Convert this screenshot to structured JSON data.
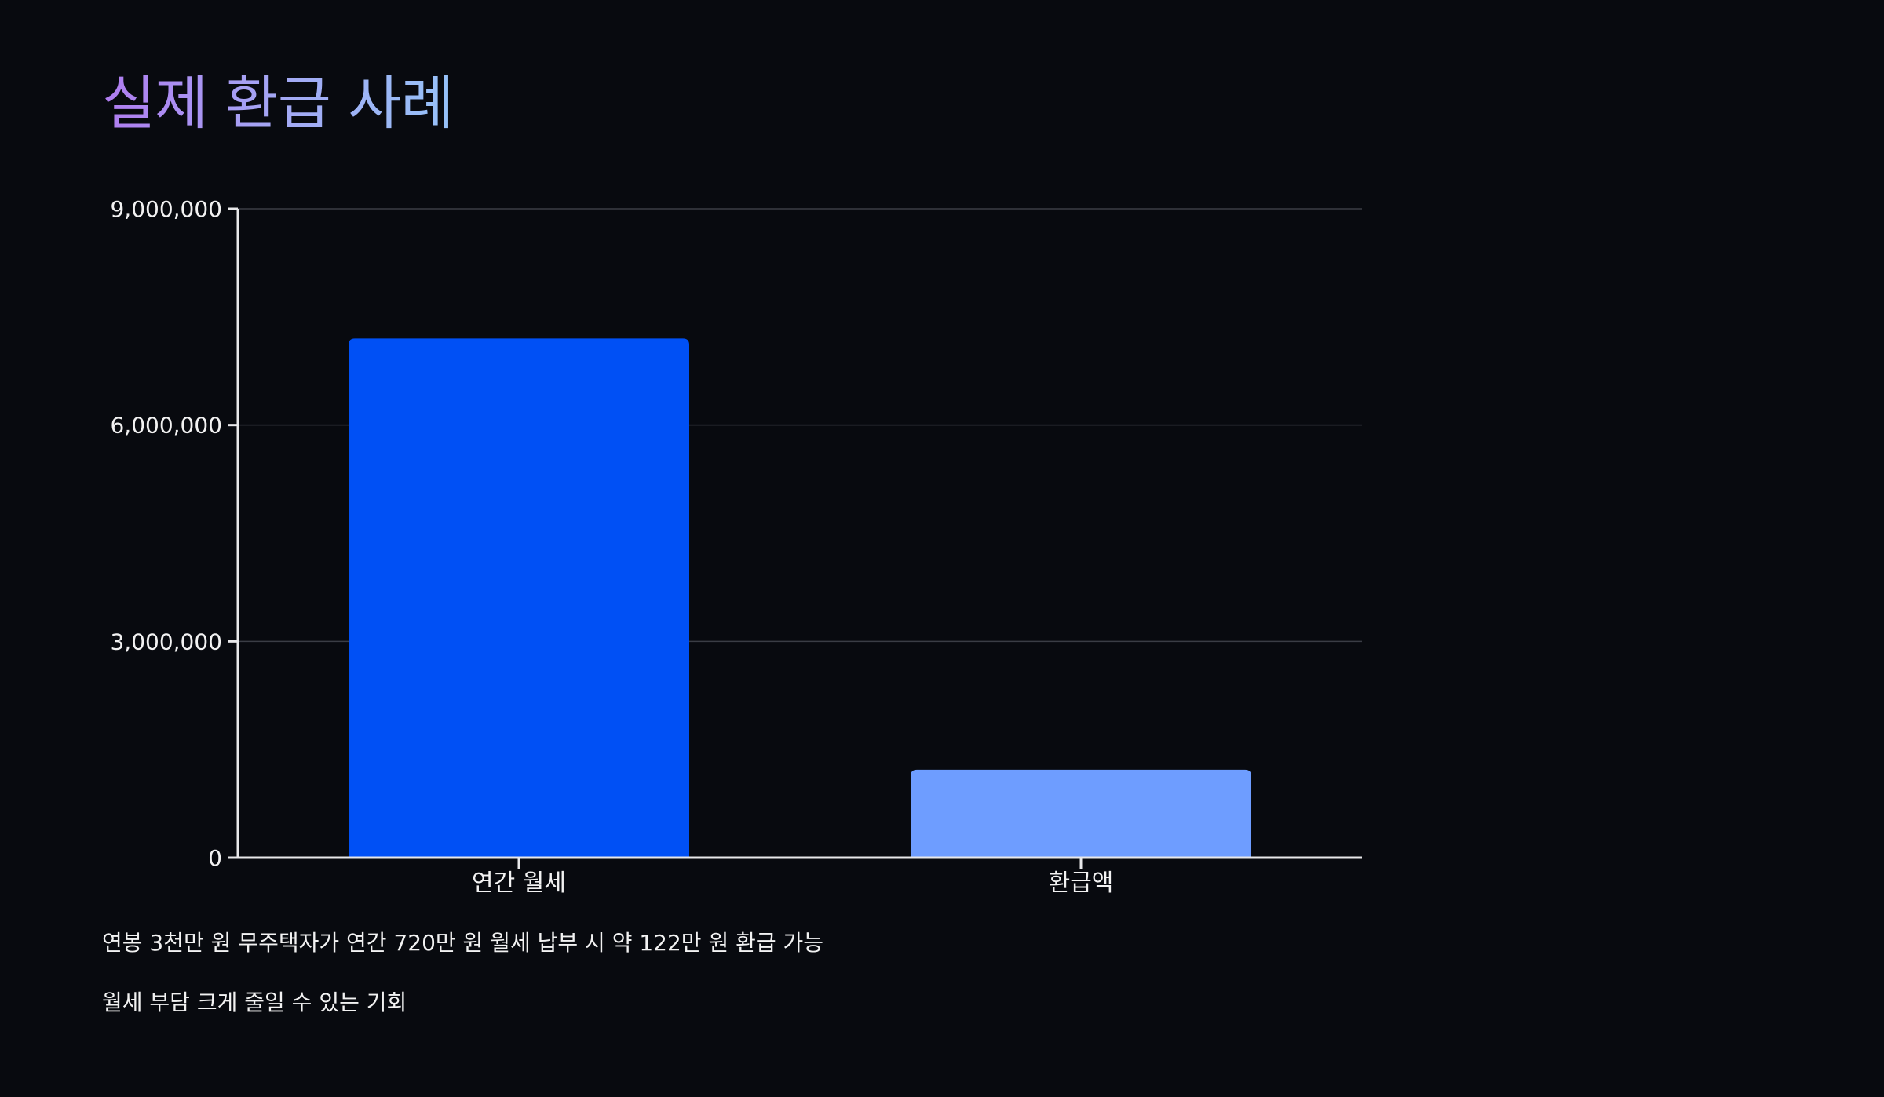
{
  "slide": {
    "title": "실제 환급 사례",
    "notes": [
      "연봉 3천만 원 무주택자가 연간 720만 원 월세 납부 시 약 122만 원 환급 가능",
      "월세 부담 크게 줄일 수 있는 기회"
    ]
  },
  "chart_data": {
    "type": "bar",
    "title": "",
    "xlabel": "",
    "ylabel": "",
    "categories": [
      "연간 월세",
      "환급액"
    ],
    "values": [
      7200000,
      1220000
    ],
    "colors": [
      "#0050f5",
      "#6e9dff"
    ],
    "ylim": [
      0,
      9000000
    ],
    "yticks": [
      0,
      3000000,
      6000000,
      9000000
    ],
    "ytick_labels": [
      "0",
      "3,000,000",
      "6,000,000",
      "9,000,000"
    ],
    "grid": true,
    "legend": "none"
  }
}
